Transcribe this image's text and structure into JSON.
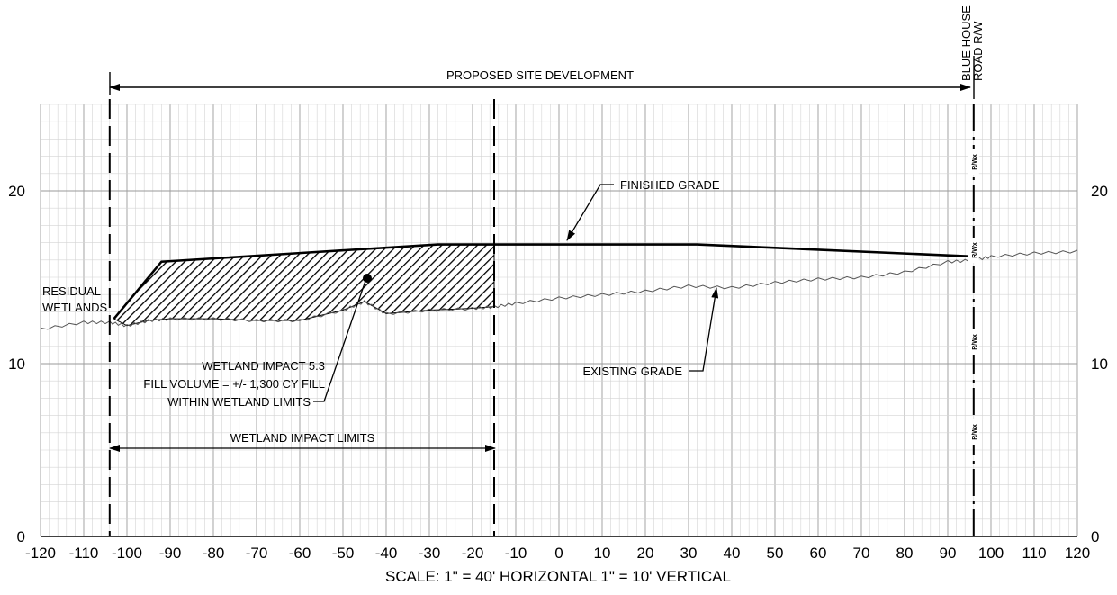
{
  "top_dimension": {
    "label": "PROPOSED SITE DEVELOPMENT"
  },
  "row_label": {
    "line1": "BLUE HOUSE",
    "line2": "ROAD R/W"
  },
  "left_label": {
    "line1": "RESIDUAL",
    "line2": "WETLANDS"
  },
  "finished_grade_label": "FINISHED GRADE",
  "existing_grade_label": "EXISTING GRADE",
  "impact_note": {
    "line1": "WETLAND IMPACT 5.3",
    "line2": "FILL VOLUME = +/- 1,300 CY FILL",
    "line3": "WITHIN WETLAND LIMITS"
  },
  "impact_limits_label": "WETLAND IMPACT LIMITS",
  "row_marker": "R/Wx",
  "scale_note": "SCALE: 1\" = 40' HORIZONTAL 1\" = 10' VERTICAL",
  "x_ticks": [
    "-120",
    "-110",
    "-100",
    "-90",
    "-80",
    "-70",
    "-60",
    "-50",
    "-40",
    "-30",
    "-20",
    "-10",
    "0",
    "10",
    "20",
    "30",
    "40",
    "50",
    "60",
    "70",
    "80",
    "90",
    "100",
    "110",
    "120"
  ],
  "y_ticks_left": [
    "20",
    "10",
    "0"
  ],
  "y_ticks_right": [
    "20",
    "10",
    "0"
  ],
  "chart_data": {
    "type": "line",
    "x_range": [
      -120,
      120
    ],
    "y_range": [
      0,
      25
    ],
    "limits": {
      "site_development_start": -104,
      "wetland_impact_end": -15,
      "right_of_way": 96
    },
    "series": [
      {
        "x": [
          -103,
          -92,
          -60,
          -28,
          -15,
          0,
          32,
          96
        ],
        "y": [
          12.6,
          15.9,
          16.4,
          16.9,
          16.9,
          16.9,
          16.9,
          16.2
        ]
      },
      {
        "x": [
          -120,
          -110,
          -104,
          -100,
          -95,
          -90,
          -80,
          -70,
          -60,
          -50,
          -45,
          -40,
          -30,
          -20,
          -15,
          -10,
          0,
          10,
          20,
          30,
          40,
          50,
          60,
          70,
          80,
          90,
          96,
          100,
          110,
          120
        ],
        "y": [
          12.0,
          12.4,
          12.4,
          12.2,
          12.5,
          12.6,
          12.6,
          12.5,
          12.5,
          13.1,
          13.6,
          12.9,
          13.1,
          13.2,
          13.3,
          13.5,
          13.8,
          14.0,
          14.2,
          14.5,
          14.4,
          14.7,
          14.9,
          15.0,
          15.3,
          15.9,
          16.0,
          16.2,
          16.4,
          16.5
        ]
      }
    ]
  }
}
